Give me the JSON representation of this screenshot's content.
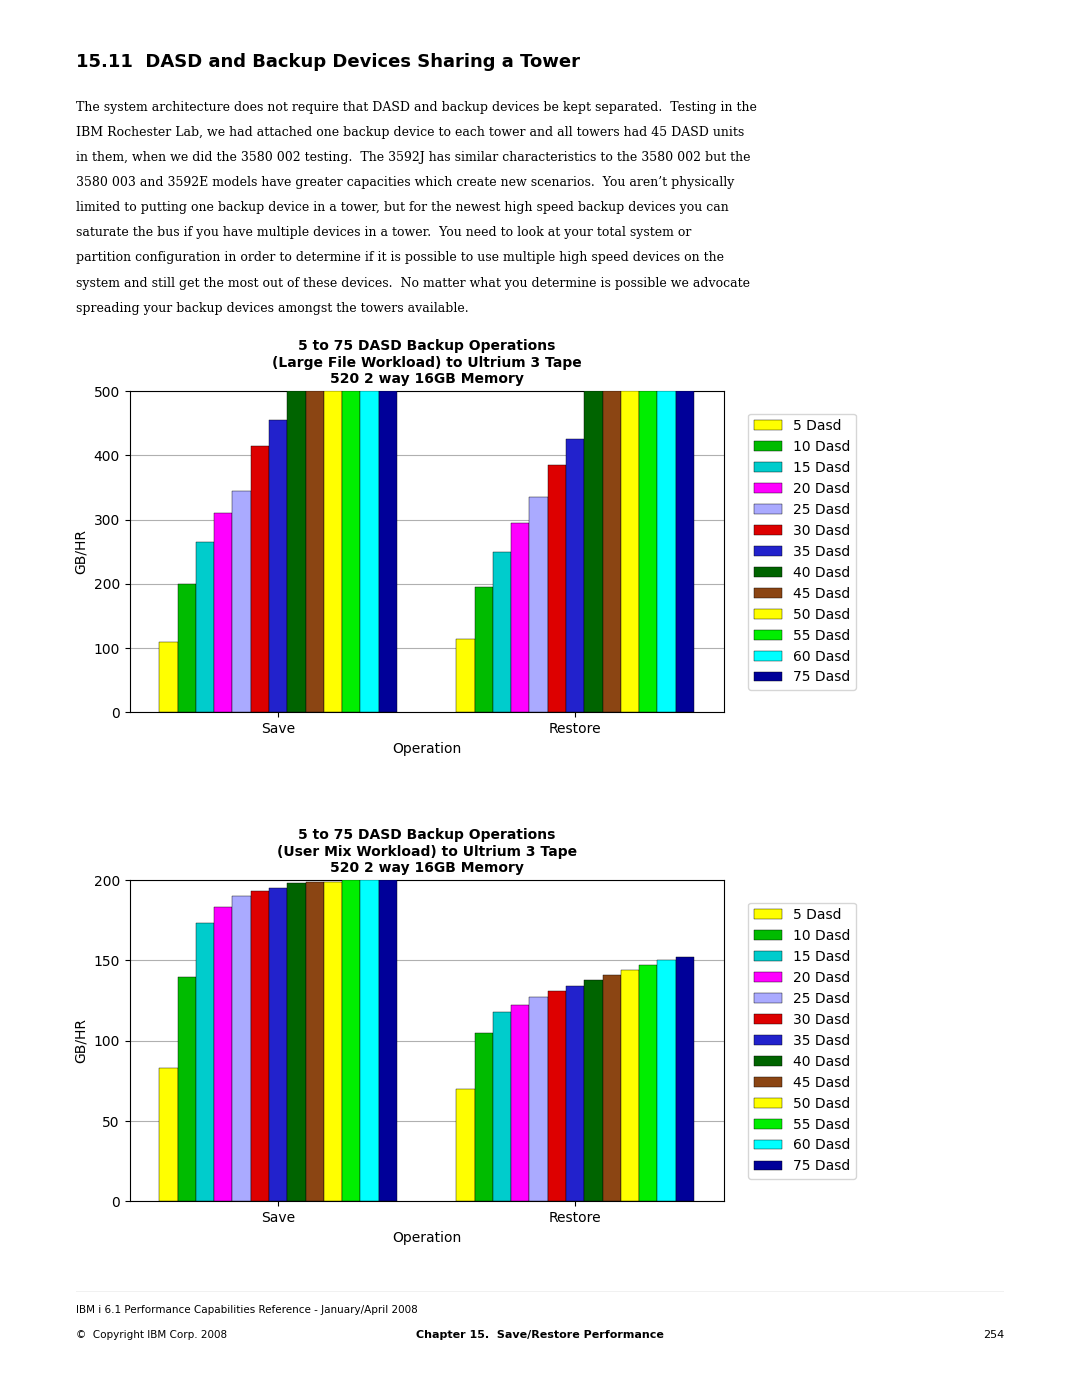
{
  "title": "15.11  DASD and Backup Devices Sharing a Tower",
  "annotations": [
    "The system architecture does not require that DASD and backup devices be kept separated.  Testing in the",
    "IBM Rochester Lab, we had attached one backup device to each tower and all towers had 45 DASD units",
    "in them, when we did the 3580 002 testing.  The 3592J has similar characteristics to the 3580 002 but the",
    "3580 003 and 3592E models have greater capacities which create new scenarios.  You aren’t physically",
    "limited to putting one backup device in a tower, but for the newest high speed backup devices you can",
    "saturate the bus if you have multiple devices in a tower.  You need to look at your total system or",
    "partition configuration in order to determine if it is possible to use multiple high speed devices on the",
    "system and still get the most out of these devices.  No matter what you determine is possible we advocate",
    "spreading your backup devices amongst the towers available.",
    "IBM i 6.1 Performance Capabilities Reference - January/April 2008",
    "©  Copyright IBM Corp. 2008",
    "Chapter 15.  Save/Restore Performance",
    "254"
  ],
  "chart_data": [
    {
      "type": "bar",
      "title": "5 to 75 DASD Backup Operations\n(Large File Workload) to Ultrium 3 Tape\n520 2 way 16GB Memory",
      "xlabel": "Operation",
      "ylabel": "GB/HR",
      "categories": [
        "Save",
        "Restore"
      ],
      "series": [
        {
          "name": "5 Dasd",
          "color": "#FFFF00",
          "values": [
            110,
            115
          ]
        },
        {
          "name": "10 Dasd",
          "color": "#00BB00",
          "values": [
            200,
            195
          ]
        },
        {
          "name": "15 Dasd",
          "color": "#00CCCC",
          "values": [
            265,
            250
          ]
        },
        {
          "name": "20 Dasd",
          "color": "#FF00FF",
          "values": [
            310,
            295
          ]
        },
        {
          "name": "25 Dasd",
          "color": "#AAAAFF",
          "values": [
            345,
            335
          ]
        },
        {
          "name": "30 Dasd",
          "color": "#DD0000",
          "values": [
            415,
            385
          ]
        },
        {
          "name": "35 Dasd",
          "color": "#2222CC",
          "values": [
            455,
            425
          ]
        },
        {
          "name": "40 Dasd",
          "color": "#006400",
          "values": [
            500,
            500
          ]
        },
        {
          "name": "45 Dasd",
          "color": "#8B4513",
          "values": [
            500,
            500
          ]
        },
        {
          "name": "50 Dasd",
          "color": "#FFFF00",
          "values": [
            500,
            500
          ]
        },
        {
          "name": "55 Dasd",
          "color": "#00EE00",
          "values": [
            500,
            500
          ]
        },
        {
          "name": "60 Dasd",
          "color": "#00FFFF",
          "values": [
            500,
            500
          ]
        },
        {
          "name": "75 Dasd",
          "color": "#000099",
          "values": [
            500,
            500
          ]
        }
      ],
      "ylim": [
        0,
        500
      ],
      "yticks": [
        0,
        100,
        200,
        300,
        400,
        500
      ],
      "grid": true,
      "legend": "center left"
    },
    {
      "type": "bar",
      "title": "5 to 75 DASD Backup Operations\n(User Mix Workload) to Ultrium 3 Tape\n520 2 way 16GB Memory",
      "xlabel": "Operation",
      "ylabel": "GB/HR",
      "categories": [
        "Save",
        "Restore"
      ],
      "series": [
        {
          "name": "5 Dasd",
          "color": "#FFFF00",
          "values": [
            83,
            70
          ]
        },
        {
          "name": "10 Dasd",
          "color": "#00BB00",
          "values": [
            140,
            105
          ]
        },
        {
          "name": "15 Dasd",
          "color": "#00CCCC",
          "values": [
            173,
            118
          ]
        },
        {
          "name": "20 Dasd",
          "color": "#FF00FF",
          "values": [
            183,
            122
          ]
        },
        {
          "name": "25 Dasd",
          "color": "#AAAAFF",
          "values": [
            190,
            127
          ]
        },
        {
          "name": "30 Dasd",
          "color": "#DD0000",
          "values": [
            193,
            131
          ]
        },
        {
          "name": "35 Dasd",
          "color": "#2222CC",
          "values": [
            195,
            134
          ]
        },
        {
          "name": "40 Dasd",
          "color": "#006400",
          "values": [
            198,
            138
          ]
        },
        {
          "name": "45 Dasd",
          "color": "#8B4513",
          "values": [
            199,
            141
          ]
        },
        {
          "name": "50 Dasd",
          "color": "#FFFF00",
          "values": [
            199,
            144
          ]
        },
        {
          "name": "55 Dasd",
          "color": "#00EE00",
          "values": [
            200,
            147
          ]
        },
        {
          "name": "60 Dasd",
          "color": "#00FFFF",
          "values": [
            200,
            150
          ]
        },
        {
          "name": "75 Dasd",
          "color": "#000099",
          "values": [
            200,
            152
          ]
        }
      ],
      "ylim": [
        0,
        200
      ],
      "yticks": [
        0,
        50,
        100,
        150,
        200
      ],
      "grid": true,
      "legend": "center left"
    }
  ]
}
